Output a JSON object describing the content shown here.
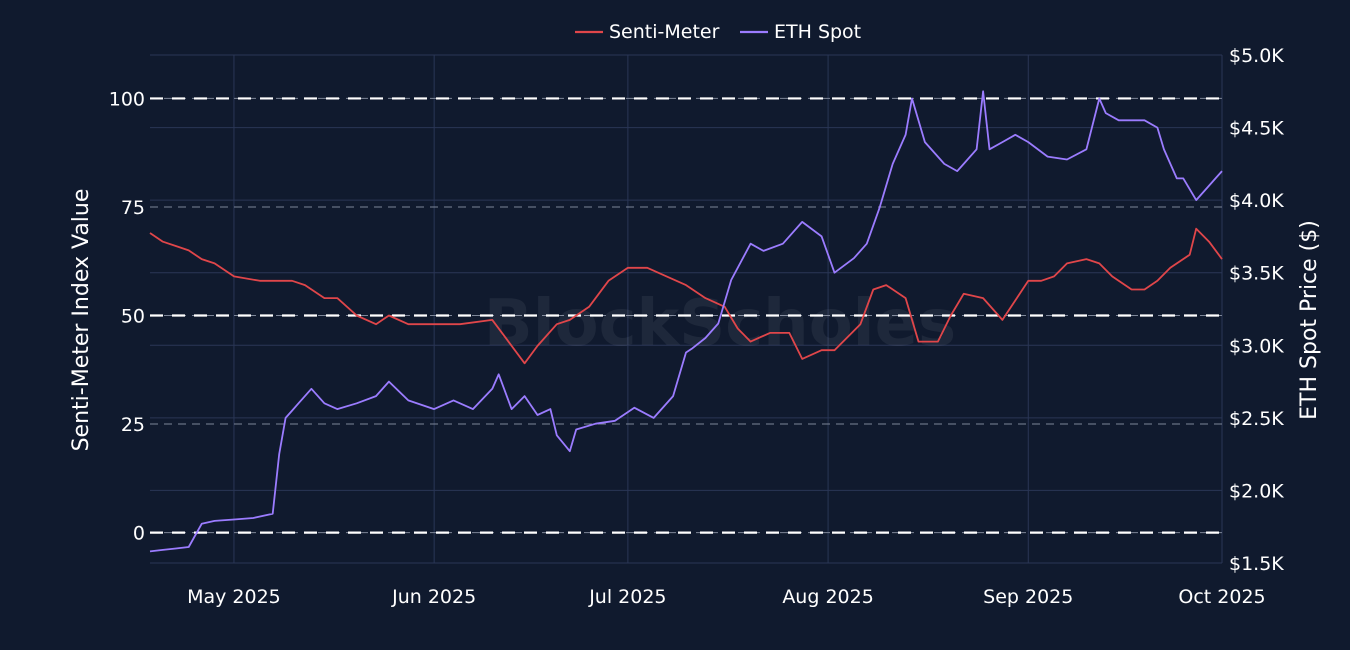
{
  "chart_data": {
    "type": "line",
    "legend": {
      "placement": "top-center",
      "entries": [
        "Senti-Meter",
        "ETH Spot"
      ]
    },
    "watermark": "BlockScholes",
    "x_axis": {
      "type": "date",
      "range": [
        "2025-04-18",
        "2025-10-01"
      ],
      "tick_values": [
        "2025-05-01",
        "2025-06-01",
        "2025-07-01",
        "2025-08-01",
        "2025-09-01",
        "2025-10-01"
      ],
      "tick_labels": [
        "May 2025",
        "Jun 2025",
        "Jul 2025",
        "Aug 2025",
        "Sep 2025",
        "Oct 2025"
      ]
    },
    "y_axis_left": {
      "label": "Senti-Meter Index Value",
      "range": [
        -7,
        110
      ],
      "ticks": [
        0,
        25,
        50,
        75,
        100
      ],
      "tick_labels": [
        "0",
        "25",
        "50",
        "75",
        "100"
      ],
      "reference_lines": [
        0,
        50,
        100
      ]
    },
    "y_axis_right": {
      "label": "ETH Spot Price ($)",
      "range": [
        1500,
        5000
      ],
      "ticks": [
        1500,
        2000,
        2500,
        3000,
        3500,
        4000,
        4500,
        5000
      ],
      "tick_labels": [
        "$1.5K",
        "$2.0K",
        "$2.5K",
        "$3.0K",
        "$3.5K",
        "$4.0K",
        "$4.5K",
        "$5.0K"
      ]
    },
    "grid": true,
    "colors": {
      "background": "#101a2e",
      "grid": "#2a3656",
      "senti": "#e0464a",
      "eth": "#9b7cff",
      "reference": "#ffffff"
    },
    "series": [
      {
        "name": "Senti-Meter",
        "axis": "left",
        "color": "#e0464a",
        "x": [
          "2025-04-18",
          "2025-04-20",
          "2025-04-22",
          "2025-04-24",
          "2025-04-26",
          "2025-04-28",
          "2025-05-01",
          "2025-05-05",
          "2025-05-10",
          "2025-05-12",
          "2025-05-15",
          "2025-05-17",
          "2025-05-20",
          "2025-05-23",
          "2025-05-25",
          "2025-05-28",
          "2025-06-01",
          "2025-06-05",
          "2025-06-10",
          "2025-06-12",
          "2025-06-15",
          "2025-06-17",
          "2025-06-20",
          "2025-06-22",
          "2025-06-25",
          "2025-06-28",
          "2025-07-01",
          "2025-07-04",
          "2025-07-07",
          "2025-07-10",
          "2025-07-13",
          "2025-07-16",
          "2025-07-18",
          "2025-07-20",
          "2025-07-23",
          "2025-07-26",
          "2025-07-28",
          "2025-07-31",
          "2025-08-02",
          "2025-08-06",
          "2025-08-08",
          "2025-08-10",
          "2025-08-13",
          "2025-08-15",
          "2025-08-18",
          "2025-08-20",
          "2025-08-22",
          "2025-08-25",
          "2025-08-28",
          "2025-09-01",
          "2025-09-03",
          "2025-09-05",
          "2025-09-07",
          "2025-09-10",
          "2025-09-12",
          "2025-09-14",
          "2025-09-17",
          "2025-09-19",
          "2025-09-21",
          "2025-09-23",
          "2025-09-26",
          "2025-09-27",
          "2025-09-29",
          "2025-10-01"
        ],
        "values": [
          69,
          67,
          66,
          65,
          63,
          62,
          59,
          58,
          58,
          57,
          54,
          54,
          50,
          48,
          50,
          48,
          48,
          48,
          49,
          45,
          39,
          43,
          48,
          49,
          52,
          58,
          61,
          61,
          59,
          57,
          54,
          52,
          47,
          44,
          46,
          46,
          40,
          42,
          42,
          48,
          56,
          57,
          54,
          44,
          44,
          50,
          55,
          54,
          49,
          58,
          58,
          59,
          62,
          63,
          62,
          59,
          56,
          56,
          58,
          61,
          64,
          70,
          67,
          63
        ]
      },
      {
        "name": "ETH Spot",
        "axis": "right",
        "color": "#9b7cff",
        "x": [
          "2025-04-18",
          "2025-04-20",
          "2025-04-22",
          "2025-04-24",
          "2025-04-26",
          "2025-04-28",
          "2025-05-01",
          "2025-05-04",
          "2025-05-07",
          "2025-05-08",
          "2025-05-09",
          "2025-05-10",
          "2025-05-11",
          "2025-05-13",
          "2025-05-15",
          "2025-05-17",
          "2025-05-20",
          "2025-05-23",
          "2025-05-25",
          "2025-05-28",
          "2025-06-01",
          "2025-06-04",
          "2025-06-07",
          "2025-06-10",
          "2025-06-11",
          "2025-06-13",
          "2025-06-15",
          "2025-06-17",
          "2025-06-19",
          "2025-06-20",
          "2025-06-22",
          "2025-06-23",
          "2025-06-26",
          "2025-06-29",
          "2025-07-02",
          "2025-07-05",
          "2025-07-08",
          "2025-07-10",
          "2025-07-11",
          "2025-07-13",
          "2025-07-15",
          "2025-07-17",
          "2025-07-20",
          "2025-07-22",
          "2025-07-25",
          "2025-07-28",
          "2025-07-31",
          "2025-08-02",
          "2025-08-05",
          "2025-08-07",
          "2025-08-09",
          "2025-08-11",
          "2025-08-13",
          "2025-08-14",
          "2025-08-16",
          "2025-08-19",
          "2025-08-21",
          "2025-08-22",
          "2025-08-24",
          "2025-08-25",
          "2025-08-26",
          "2025-08-28",
          "2025-08-30",
          "2025-09-01",
          "2025-09-04",
          "2025-09-07",
          "2025-09-10",
          "2025-09-12",
          "2025-09-13",
          "2025-09-15",
          "2025-09-17",
          "2025-09-19",
          "2025-09-21",
          "2025-09-22",
          "2025-09-24",
          "2025-09-25",
          "2025-09-27",
          "2025-09-29",
          "2025-09-30",
          "2025-10-01"
        ],
        "values": [
          1580,
          1590,
          1600,
          1610,
          1770,
          1790,
          1800,
          1810,
          1840,
          2250,
          2500,
          2550,
          2600,
          2700,
          2600,
          2560,
          2600,
          2650,
          2750,
          2620,
          2560,
          2620,
          2560,
          2700,
          2800,
          2560,
          2650,
          2520,
          2560,
          2380,
          2270,
          2420,
          2460,
          2480,
          2570,
          2500,
          2650,
          2950,
          2980,
          3050,
          3150,
          3450,
          3700,
          3650,
          3700,
          3850,
          3750,
          3500,
          3600,
          3700,
          3950,
          4250,
          4450,
          4700,
          4400,
          4250,
          4200,
          4250,
          4350,
          4750,
          4350,
          4400,
          4450,
          4400,
          4300,
          4280,
          4350,
          4700,
          4600,
          4550,
          4550,
          4550,
          4500,
          4350,
          4150,
          4150,
          4000,
          4100,
          4150,
          4200
        ]
      }
    ]
  }
}
